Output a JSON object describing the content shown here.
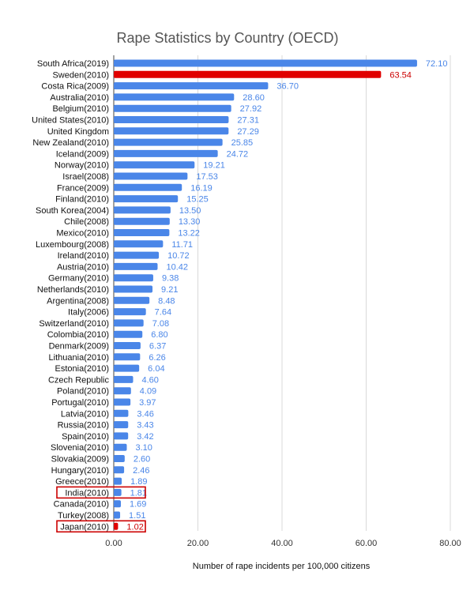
{
  "chart_data": {
    "type": "bar",
    "orientation": "horizontal",
    "title": "Rape Statistics by Country (OECD)",
    "xlabel": "Number of rape incidents per 100,000 citizens",
    "ylabel": "",
    "xlim": [
      0,
      80
    ],
    "x_ticks": [
      "0.00",
      "20.00",
      "40.00",
      "60.00",
      "80.00"
    ],
    "grid": "vertical",
    "colors": {
      "default_bar": "#4a86e8",
      "highlight_bar": "#e00000",
      "default_label": "#4a86e8",
      "highlight_label": "#cc0000",
      "box_outline": "#cc0000",
      "title": "#555555",
      "category_text": "#111111",
      "tick_text": "#333333",
      "gridline": "#d9d9d9"
    },
    "categories": [
      "South Africa(2019)",
      "Sweden(2010)",
      "Costa Rica(2009)",
      "Australia(2010)",
      "Belgium(2010)",
      "United States(2010)",
      "United Kingdom",
      "New Zealand(2010)",
      "Iceland(2009)",
      "Norway(2010)",
      "Israel(2008)",
      "France(2009)",
      "Finland(2010)",
      "South Korea(2004)",
      "Chile(2008)",
      "Mexico(2010)",
      "Luxembourg(2008)",
      "Ireland(2010)",
      "Austria(2010)",
      "Germany(2010)",
      "Netherlands(2010)",
      "Argentina(2008)",
      "Italy(2006)",
      "Switzerland(2010)",
      "Colombia(2010)",
      "Denmark(2009)",
      "Lithuania(2010)",
      "Estonia(2010)",
      "Czech Republic",
      "Poland(2010)",
      "Portugal(2010)",
      "Latvia(2010)",
      "Russia(2010)",
      "Spain(2010)",
      "Slovenia(2010)",
      "Slovakia(2009)",
      "Hungary(2010)",
      "Greece(2010)",
      "India(2010)",
      "Canada(2010)",
      "Turkey(2008)",
      "Japan(2010)"
    ],
    "values": [
      72.1,
      63.54,
      36.7,
      28.6,
      27.92,
      27.31,
      27.29,
      25.85,
      24.72,
      19.21,
      17.53,
      16.19,
      15.25,
      13.5,
      13.3,
      13.22,
      11.71,
      10.72,
      10.42,
      9.38,
      9.21,
      8.48,
      7.64,
      7.08,
      6.8,
      6.37,
      6.26,
      6.04,
      4.6,
      4.09,
      3.97,
      3.46,
      3.43,
      3.42,
      3.1,
      2.6,
      2.46,
      1.89,
      1.81,
      1.69,
      1.51,
      1.02
    ],
    "value_labels": [
      "72.10",
      "63.54",
      "36.70",
      "28.60",
      "27.92",
      "27.31",
      "27.29",
      "25.85",
      "24.72",
      "19.21",
      "17.53",
      "16.19",
      "15.25",
      "13.50",
      "13.30",
      "13.22",
      "11.71",
      "10.72",
      "10.42",
      "9.38",
      "9.21",
      "8.48",
      "7.64",
      "7.08",
      "6.80",
      "6.37",
      "6.26",
      "6.04",
      "4.60",
      "4.09",
      "3.97",
      "3.46",
      "3.43",
      "3.42",
      "3.10",
      "2.60",
      "2.46",
      "1.89",
      "1.81",
      "1.69",
      "1.51",
      "1.02"
    ],
    "highlighted_bars": [
      "Sweden(2010)",
      "Japan(2010)"
    ],
    "boxed_rows": [
      "India(2010)",
      "Japan(2010)"
    ]
  }
}
